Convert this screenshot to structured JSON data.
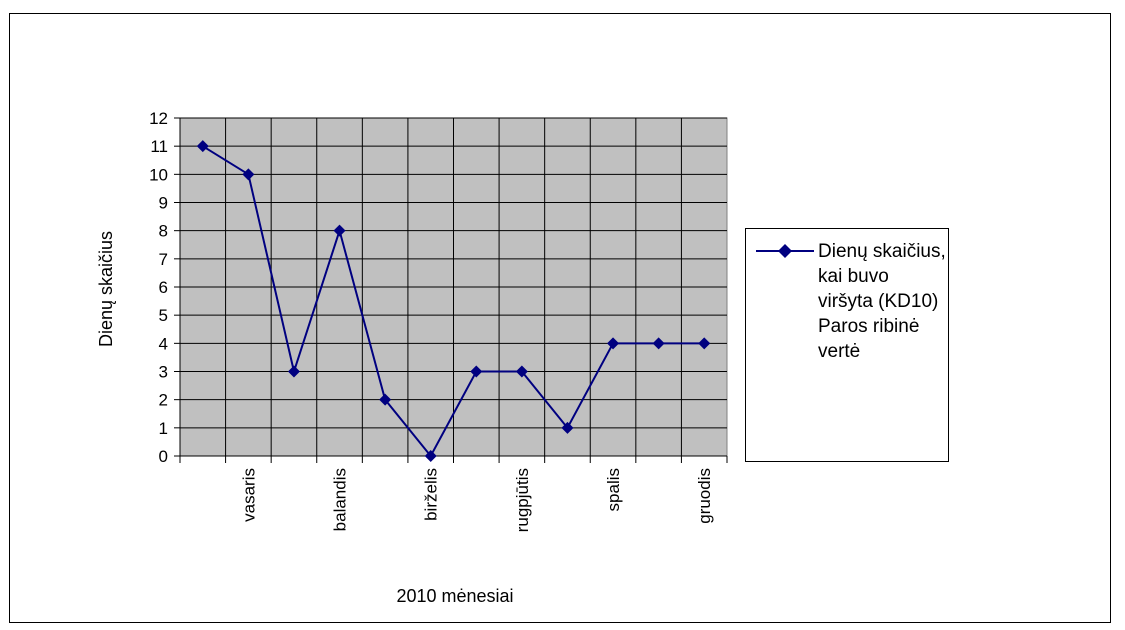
{
  "chart_data": {
    "type": "line",
    "categories": [
      "",
      "vasaris",
      "",
      "balandis",
      "",
      "birželis",
      "",
      "rugpjūtis",
      "",
      "spalis",
      "",
      "gruodis"
    ],
    "series": [
      {
        "name": "Dienų skaičius, kai buvo viršyta (KD10) Paros ribinė vertė",
        "values": [
          11,
          10,
          3,
          8,
          2,
          0,
          3,
          3,
          1,
          4,
          4,
          4
        ],
        "color": "#000080",
        "marker": "diamond"
      }
    ],
    "xlabel": "2010 mėnesiai",
    "ylabel": "Dienų skaičius",
    "ylim": [
      0,
      12
    ],
    "yticks": [
      "0",
      "1",
      "2",
      "3",
      "4",
      "5",
      "6",
      "7",
      "8",
      "9",
      "10",
      "11",
      "12"
    ],
    "grid": true,
    "plot_background": "#c0c0c0",
    "legend_position": "right"
  }
}
